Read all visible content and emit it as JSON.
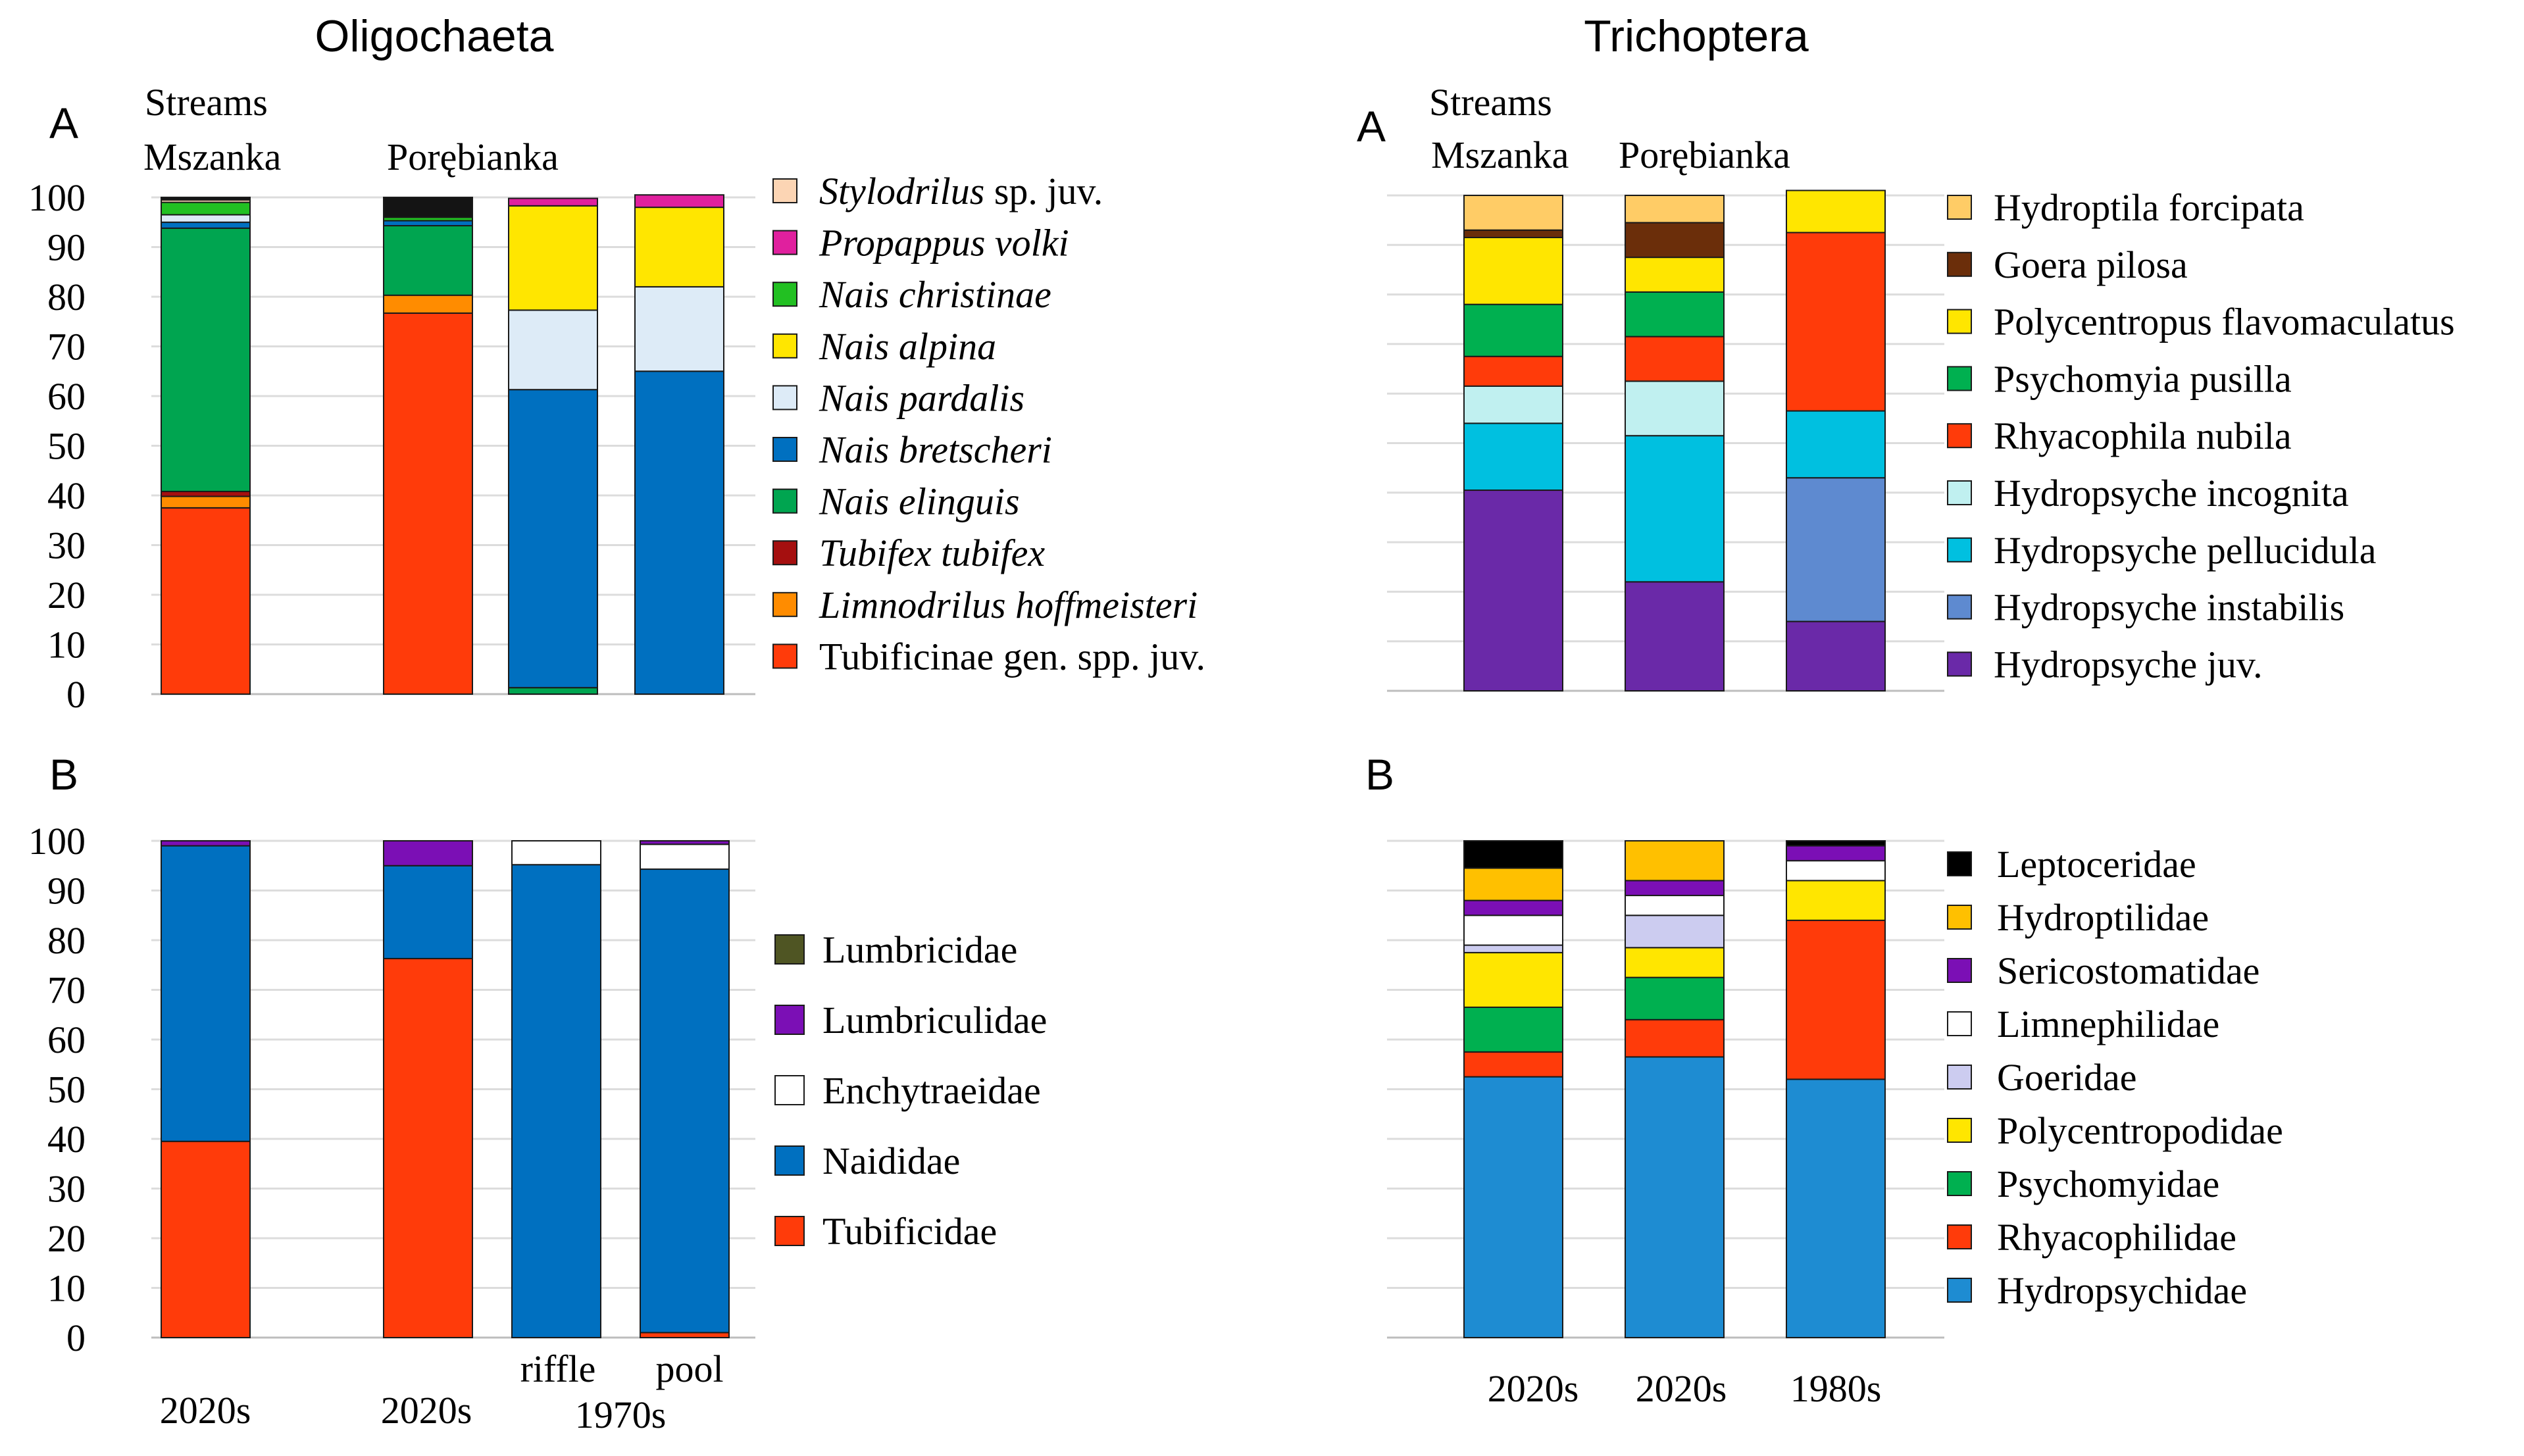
{
  "titles": {
    "left": "Oligochaeta",
    "right": "Trichoptera"
  },
  "panel_letters": {
    "a": "A",
    "b": "B"
  },
  "group_labels": {
    "streams": "Streams",
    "mszanka": "Mszanka",
    "porebianka": "Porębianka"
  },
  "chart_data": [
    {
      "id": "oligo-a",
      "type": "bar",
      "stacked": true,
      "title": "Oligochaeta",
      "panel": "A",
      "ylabel": "",
      "ylim": [
        0,
        100
      ],
      "yticks": [
        0,
        10,
        20,
        30,
        40,
        50,
        60,
        70,
        80,
        90,
        100
      ],
      "categories": [
        "Mszanka 2020s",
        "Porębianka 2020s",
        "Porębianka 1970s riffle",
        "Porębianka 1970s pool"
      ],
      "series": [
        {
          "name": "Tubificinae gen. spp. juv.",
          "italic": false,
          "color": "#ff3b0a",
          "values": [
            37.5,
            76.7,
            0,
            0
          ]
        },
        {
          "name": "Limnodrilus hoffmeisteri",
          "italic": true,
          "color": "#ff8c00",
          "values": [
            2.3,
            3.6,
            0,
            0
          ]
        },
        {
          "name": "Tubifex tubifex",
          "italic": true,
          "color": "#a50f0f",
          "values": [
            1,
            0,
            0,
            0
          ]
        },
        {
          "name": "Nais elinguis",
          "italic": true,
          "color": "#00a550",
          "values": [
            53,
            14,
            1.3,
            0
          ]
        },
        {
          "name": "Nais bretscheri",
          "italic": true,
          "color": "#0070c0",
          "values": [
            1.2,
            1,
            60,
            65
          ]
        },
        {
          "name": "Nais pardalis",
          "italic": true,
          "color": "#ddebf7",
          "values": [
            1.5,
            0,
            16,
            17
          ]
        },
        {
          "name": "Nais alpina",
          "italic": true,
          "color": "#ffe600",
          "values": [
            0,
            0,
            21,
            16
          ]
        },
        {
          "name": "Nais christinae",
          "italic": true,
          "color": "#22c022",
          "values": [
            2.5,
            0.7,
            0,
            0
          ]
        },
        {
          "name": "Propappus volki",
          "italic": true,
          "color": "#e0209e",
          "values": [
            0,
            0,
            1.5,
            2.5
          ]
        },
        {
          "name": "Stylodrilus sp. juv.",
          "italic": false,
          "color": "#fcd5b4",
          "values": [
            0.5,
            0,
            0,
            0
          ]
        },
        {
          "name": "",
          "italic": false,
          "color": "#141414",
          "values": [
            0.5,
            4,
            0,
            0
          ]
        }
      ],
      "legend": [
        {
          "text": "Stylodrilus",
          "suffix": " sp. juv.",
          "italic": true,
          "color": "#fcd5b4"
        },
        {
          "text": "Propappus volki",
          "suffix": "",
          "italic": true,
          "color": "#e0209e"
        },
        {
          "text": "Nais christinae",
          "suffix": "",
          "italic": true,
          "color": "#22c022"
        },
        {
          "text": "Nais alpina",
          "suffix": "",
          "italic": true,
          "color": "#ffe600"
        },
        {
          "text": "Nais pardalis",
          "suffix": "",
          "italic": true,
          "color": "#ddebf7"
        },
        {
          "text": "Nais bretscheri",
          "suffix": "",
          "italic": true,
          "color": "#0070c0"
        },
        {
          "text": "Nais elinguis",
          "suffix": "",
          "italic": true,
          "color": "#00a550"
        },
        {
          "text": "Tubifex tubifex",
          "suffix": "",
          "italic": true,
          "color": "#a50f0f"
        },
        {
          "text": "Limnodrilus hoffmeisteri",
          "suffix": "",
          "italic": true,
          "color": "#ff8c00"
        },
        {
          "text": "Tubificinae gen. spp. juv.",
          "suffix": "",
          "italic": false,
          "color": "#ff3b0a"
        }
      ]
    },
    {
      "id": "oligo-b",
      "type": "bar",
      "stacked": true,
      "title": "Oligochaeta",
      "panel": "B",
      "ylim": [
        0,
        100
      ],
      "yticks": [
        0,
        10,
        20,
        30,
        40,
        50,
        60,
        70,
        80,
        90,
        100
      ],
      "categories": [
        "Mszanka 2020s",
        "Porębianka 2020s",
        "Porębianka 1970s riffle",
        "Porębianka 1970s pool"
      ],
      "series": [
        {
          "name": "Tubificidae",
          "color": "#ff3b0a",
          "values": [
            39.5,
            76.3,
            0,
            1
          ]
        },
        {
          "name": "Naididae",
          "color": "#0070c0",
          "values": [
            59.5,
            18.7,
            95.2,
            93.3
          ]
        },
        {
          "name": "Enchytraeidae",
          "color": "#ffffff",
          "values": [
            0,
            0,
            4.8,
            5
          ]
        },
        {
          "name": "Lumbriculidae",
          "color": "#7b0fb5",
          "values": [
            1,
            5,
            0,
            0.7
          ]
        },
        {
          "name": "Lumbricidae",
          "color": "#4f5523",
          "values": [
            0,
            0,
            0,
            0
          ]
        }
      ],
      "legend": [
        {
          "text": "Lumbricidae",
          "color": "#4f5523"
        },
        {
          "text": "Lumbriculidae",
          "color": "#7b0fb5"
        },
        {
          "text": "Enchytraeidae",
          "color": "#ffffff"
        },
        {
          "text": "Naididae",
          "color": "#0070c0"
        },
        {
          "text": "Tubificidae",
          "color": "#ff3b0a"
        }
      ],
      "x_labels": {
        "mszanka": "2020s",
        "porebianka": "2020s",
        "riffle": "riffle",
        "pool": "pool",
        "decade_1970s": "1970s"
      }
    },
    {
      "id": "trich-a",
      "type": "bar",
      "stacked": true,
      "title": "Trichoptera",
      "panel": "A",
      "ylim": [
        0,
        100
      ],
      "categories": [
        "Mszanka 2020s",
        "Porębianka 2020s",
        "Porębianka 1980s"
      ],
      "series": [
        {
          "name": "Hydropsyche juv.",
          "color": "#6a29a8",
          "values": [
            40.5,
            22,
            14
          ]
        },
        {
          "name": "Hydropsyche instabilis",
          "color": "#5e8ad0",
          "values": [
            0,
            0,
            29
          ]
        },
        {
          "name": "Hydropsyche pellucidula",
          "color": "#00c0e0",
          "values": [
            13.5,
            29.5,
            13.5
          ]
        },
        {
          "name": "Hydropsyche incognita",
          "color": "#c0f0f0",
          "values": [
            7.5,
            11,
            0
          ]
        },
        {
          "name": "Rhyacophila nubila",
          "color": "#ff3b0a",
          "values": [
            6,
            9,
            36
          ]
        },
        {
          "name": "Psychomyia pusilla",
          "color": "#00b050",
          "values": [
            10.5,
            9,
            0
          ]
        },
        {
          "name": "Polycentropus flavomaculatus",
          "color": "#ffe600",
          "values": [
            13.5,
            7,
            8.5
          ]
        },
        {
          "name": "Goera pilosa",
          "color": "#6b2e0a",
          "values": [
            1.5,
            7,
            0
          ]
        },
        {
          "name": "Hydroptila forcipata",
          "color": "#ffcc66",
          "values": [
            7,
            5.5,
            0
          ]
        }
      ],
      "legend": [
        {
          "text": "Hydroptila forcipata",
          "color": "#ffcc66"
        },
        {
          "text": "Goera pilosa",
          "color": "#6b2e0a"
        },
        {
          "text": "Polycentropus flavomaculatus",
          "color": "#ffe600"
        },
        {
          "text": "Psychomyia pusilla",
          "color": "#00b050"
        },
        {
          "text": "Rhyacophila nubila",
          "color": "#ff3b0a"
        },
        {
          "text": "Hydropsyche incognita",
          "color": "#c0f0f0"
        },
        {
          "text": "Hydropsyche pellucidula",
          "color": "#00c0e0"
        },
        {
          "text": "Hydropsyche instabilis",
          "color": "#5e8ad0"
        },
        {
          "text": "Hydropsyche juv.",
          "color": "#6a29a8"
        }
      ]
    },
    {
      "id": "trich-b",
      "type": "bar",
      "stacked": true,
      "title": "Trichoptera",
      "panel": "B",
      "ylim": [
        0,
        100
      ],
      "categories": [
        "Mszanka 2020s",
        "Porębianka 2020s",
        "Porębianka 1980s"
      ],
      "series": [
        {
          "name": "Hydropsychidae",
          "color": "#1e8cd2",
          "values": [
            52.5,
            56.5,
            52
          ]
        },
        {
          "name": "Rhyacophilidae",
          "color": "#ff3b0a",
          "values": [
            5,
            7.5,
            32
          ]
        },
        {
          "name": "Psychomyidae",
          "color": "#00b050",
          "values": [
            9,
            8.5,
            0
          ]
        },
        {
          "name": "Polycentropodidae",
          "color": "#ffe600",
          "values": [
            11,
            6,
            8
          ]
        },
        {
          "name": "Goeridae",
          "color": "#ccccf0",
          "values": [
            1.5,
            6.5,
            0
          ]
        },
        {
          "name": "Limnephilidae",
          "color": "#ffffff",
          "values": [
            6,
            4,
            4
          ]
        },
        {
          "name": "Sericostomatidae",
          "color": "#7b0fb5",
          "values": [
            3,
            3,
            3
          ]
        },
        {
          "name": "Hydroptilidae",
          "color": "#ffc000",
          "values": [
            6.5,
            8,
            0
          ]
        },
        {
          "name": "Leptoceridae",
          "color": "#000000",
          "values": [
            5.5,
            0,
            1
          ]
        }
      ],
      "legend": [
        {
          "text": "Leptoceridae",
          "color": "#000000"
        },
        {
          "text": "Hydroptilidae",
          "color": "#ffc000"
        },
        {
          "text": "Sericostomatidae",
          "color": "#7b0fb5"
        },
        {
          "text": "Limnephilidae",
          "color": "#ffffff"
        },
        {
          "text": "Goeridae",
          "color": "#ccccf0"
        },
        {
          "text": "Polycentropodidae",
          "color": "#ffe600"
        },
        {
          "text": "Psychomyidae",
          "color": "#00b050"
        },
        {
          "text": "Rhyacophilidae",
          "color": "#ff3b0a"
        },
        {
          "text": "Hydropsychidae",
          "color": "#1e8cd2"
        }
      ],
      "x_labels": {
        "mszanka": "2020s",
        "porebianka": "2020s",
        "decade_1980s": "1980s"
      }
    }
  ]
}
